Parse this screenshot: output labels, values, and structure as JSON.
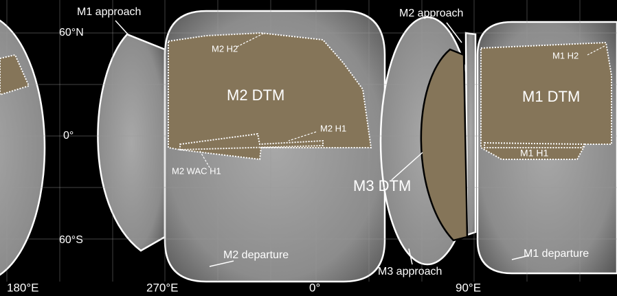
{
  "axis_labels": [
    "60°N",
    "0°",
    "60°S",
    "180°E",
    "270°E",
    "0°",
    "90°E"
  ],
  "region_labels": [
    "M1 approach",
    "M2 H2",
    "M2 DTM",
    "M2 H1",
    "M2 WAC H1",
    "M2 departure",
    "M2 approach",
    "M3 DTM",
    "M3 approach",
    "M1 H2",
    "M1 DTM",
    "M1 H1",
    "M1 departure"
  ]
}
